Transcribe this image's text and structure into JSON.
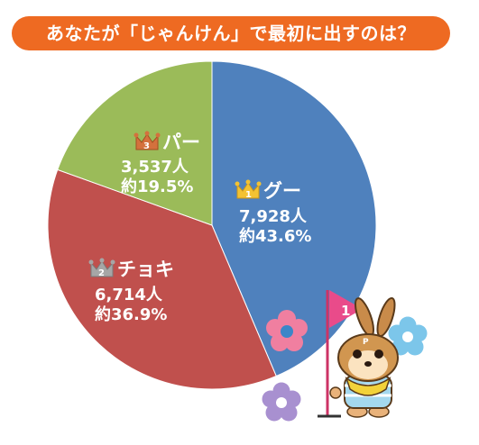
{
  "colors": {
    "title_bg": "#ee6a22",
    "gu": "#4f81bd",
    "choki": "#c0504d",
    "pa": "#9bbb59"
  },
  "chart_data": {
    "type": "pie",
    "title": "あなたが「じゃんけん」で最初に出すのは？",
    "slices": [
      {
        "rank": "1",
        "label": "グー",
        "count": "7,928人",
        "percent": "約43.6%",
        "value": 43.6,
        "color": "#4f81bd",
        "crown": "gold"
      },
      {
        "rank": "2",
        "label": "チョキ",
        "count": "6,714人",
        "percent": "約36.9%",
        "value": 36.9,
        "color": "#c0504d",
        "crown": "silver"
      },
      {
        "rank": "3",
        "label": "パー",
        "count": "3,537人",
        "percent": "約19.5%",
        "value": 19.5,
        "color": "#9bbb59",
        "crown": "bronze"
      }
    ]
  },
  "mascot": {
    "flag_number": "1",
    "badge_letter": "P"
  }
}
